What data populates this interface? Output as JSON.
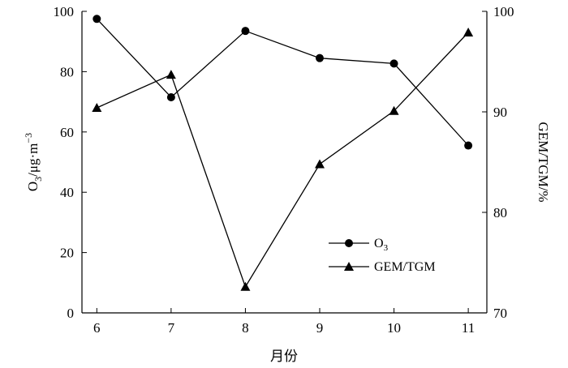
{
  "chart_data": {
    "type": "line",
    "x": [
      6,
      7,
      8,
      9,
      10,
      11
    ],
    "xlabel": "月份",
    "ylabel_left": "O3/μg·m−3",
    "ylabel_left_parts": {
      "base": "O",
      "sub": "3",
      "mid": "/μg·m",
      "sup": "−3"
    },
    "ylabel_right": "GEM/TGM/%",
    "x_ticks": [
      "6",
      "7",
      "8",
      "9",
      "10",
      "11"
    ],
    "xlim": [
      5.8,
      11.25
    ],
    "y_left_ticks": [
      "0",
      "20",
      "40",
      "60",
      "80",
      "100"
    ],
    "y_left_lim": [
      0,
      100
    ],
    "y_right_ticks": [
      "70",
      "80",
      "90",
      "100"
    ],
    "y_right_lim": [
      70,
      100
    ],
    "grid": false,
    "legend_position": "lower-right",
    "series": [
      {
        "name": "O3",
        "name_parts": {
          "base": "O",
          "sub": "3"
        },
        "axis": "left",
        "marker": "circle",
        "color": "#000000",
        "values": [
          97.5,
          71.5,
          93.5,
          84.5,
          82.7,
          55.5
        ]
      },
      {
        "name": "GEM/TGM",
        "axis": "right",
        "marker": "triangle",
        "color": "#000000",
        "values": [
          90.4,
          93.7,
          72.6,
          84.8,
          90.1,
          97.9
        ]
      }
    ]
  }
}
